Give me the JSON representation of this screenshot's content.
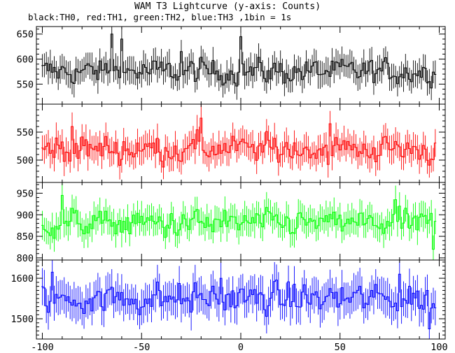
{
  "chart_data": {
    "type": "line",
    "title": "WAM T3 Lightcurve (y-axis: Counts)",
    "subtitle": "black:TH0, red:TH1, green:TH2, blue:TH3 ,1bin = 1s",
    "xlabel": "",
    "ylabel": "",
    "xlim": [
      -103,
      103
    ],
    "x_ticks": [
      -100,
      -50,
      0,
      50,
      100
    ],
    "bin_seconds": 1,
    "error_bars": true,
    "panels": [
      {
        "name": "TH0",
        "color": "#000000",
        "ylim": [
          510,
          665
        ],
        "y_ticks": [
          550,
          600,
          650
        ],
        "baseline": 575,
        "amplitude": 15,
        "spikes": [
          {
            "x": -65,
            "value": 650
          },
          {
            "x": -60,
            "value": 640
          },
          {
            "x": 0,
            "value": 645
          },
          {
            "x": -30,
            "value": 615
          }
        ]
      },
      {
        "name": "TH1",
        "color": "#ff0000",
        "ylim": [
          460,
          600
        ],
        "y_ticks": [
          500,
          550
        ],
        "baseline": 520,
        "amplitude": 15,
        "spikes": [
          {
            "x": -20,
            "value": 575
          },
          {
            "x": 45,
            "value": 565
          },
          {
            "x": -85,
            "value": 560
          }
        ]
      },
      {
        "name": "TH2",
        "color": "#00ff00",
        "ylim": [
          795,
          975
        ],
        "y_ticks": [
          800,
          850,
          900,
          950
        ],
        "baseline": 880,
        "amplitude": 18,
        "spikes": [
          {
            "x": -90,
            "value": 945
          },
          {
            "x": 78,
            "value": 935
          },
          {
            "x": 97,
            "value": 820
          }
        ]
      },
      {
        "name": "TH3",
        "color": "#0000ff",
        "ylim": [
          1450,
          1645
        ],
        "y_ticks": [
          1500,
          1600
        ],
        "baseline": 1550,
        "amplitude": 22,
        "spikes": [
          {
            "x": -95,
            "value": 1615
          },
          {
            "x": -10,
            "value": 1600
          },
          {
            "x": 80,
            "value": 1610
          },
          {
            "x": 95,
            "value": 1475
          }
        ]
      }
    ]
  }
}
